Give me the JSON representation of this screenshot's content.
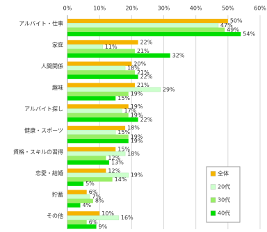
{
  "chart_data": {
    "type": "bar",
    "orientation": "horizontal",
    "categories": [
      "アルバイト・仕事",
      "家庭",
      "人間関係",
      "趣味",
      "アルバイト探し",
      "健康・スポーツ",
      "資格・スキルの習得",
      "恋愛・結婚",
      "貯蓄",
      "その他"
    ],
    "series": [
      {
        "name": "全体",
        "color": "#f5b400",
        "values": [
          50,
          22,
          20,
          21,
          19,
          18,
          15,
          12,
          6,
          10
        ],
        "value_labels": [
          "50%",
          "22%",
          "20%",
          "21%",
          "19%",
          "18%",
          "15%",
          "12%",
          "6%",
          "10%"
        ]
      },
      {
        "name": "20代",
        "color": "#ccffcc",
        "values": [
          47,
          11,
          18,
          29,
          17,
          15,
          18,
          19,
          7,
          16
        ],
        "value_labels": [
          "47%",
          "11%",
          "18%",
          "29%",
          "17%",
          "15%",
          "18%",
          "19%",
          "7%",
          "16%"
        ]
      },
      {
        "name": "30代",
        "color": "#99ee66",
        "values": [
          49,
          21,
          21,
          19,
          19,
          19,
          12,
          14,
          8,
          6
        ],
        "value_labels": [
          "49%",
          "21%",
          "21%",
          "19%",
          "19%",
          "19%",
          "12%",
          "14%",
          "8%",
          "6%"
        ]
      },
      {
        "name": "40代",
        "color": "#00dd00",
        "values": [
          54,
          32,
          22,
          15,
          22,
          19,
          13,
          5,
          4,
          9
        ],
        "value_labels": [
          "54%",
          "32%",
          "22%",
          "15%",
          "22%",
          "19%",
          "13%",
          "5%",
          "4%",
          "9%"
        ]
      }
    ],
    "xlim": [
      0,
      60
    ],
    "xticks": [
      {
        "value": 0,
        "label": "0%"
      },
      {
        "value": 10,
        "label": "10%"
      },
      {
        "value": 20,
        "label": "20%"
      },
      {
        "value": 30,
        "label": "30%"
      },
      {
        "value": 40,
        "label": "40%"
      },
      {
        "value": 50,
        "label": "50%"
      },
      {
        "value": 60,
        "label": "60%"
      }
    ],
    "grid": true,
    "legend": "lower right"
  }
}
